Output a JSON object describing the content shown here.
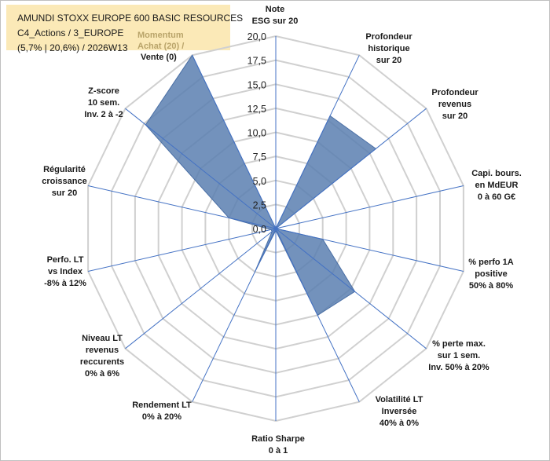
{
  "header": {
    "line1": "AMUNDI STOXX EUROPE 600 BASIC RESOURCES",
    "line2": "C4_Actions / 3_EUROPE",
    "line3": "(5,7% | 20,6%) / 2026W13"
  },
  "momentum": {
    "line1": "Momentum",
    "line2": "Achat (20) /",
    "line3": "Vente (0)"
  },
  "chart_data": {
    "type": "radar",
    "title": "AMUNDI STOXX EUROPE 600 BASIC RESOURCES",
    "rlim": [
      0,
      20
    ],
    "ticks": [
      "0,0",
      "2,5",
      "5,0",
      "7,5",
      "10,0",
      "12,5",
      "15,0",
      "17,5",
      "20,0"
    ],
    "tick_values": [
      0,
      2.5,
      5,
      7.5,
      10,
      12.5,
      15,
      17.5,
      20
    ],
    "grid": true,
    "fill_color": "#5b7fb0",
    "edge_color": "#4a6fa5",
    "axes": [
      {
        "lines": [
          "Note",
          "ESG sur 20"
        ],
        "value": 0
      },
      {
        "lines": [
          "Profondeur",
          "historique",
          "sur 20"
        ],
        "value": 13
      },
      {
        "lines": [
          "Profondeur",
          "revenus",
          "sur 20"
        ],
        "value": 13.3
      },
      {
        "lines": [
          "Capi. bours.",
          "en MdEUR",
          "0 à 60 G€"
        ],
        "value": 0
      },
      {
        "lines": [
          "% perfo 1A",
          "positive",
          "50% à 80%"
        ],
        "value": 5
      },
      {
        "lines": [
          "% perte max.",
          "sur 1 sem.",
          "Inv. 50% à 20%"
        ],
        "value": 10.5
      },
      {
        "lines": [
          "Volatilité LT",
          "Inversée",
          "40% à 0%"
        ],
        "value": 10
      },
      {
        "lines": [
          "Ratio Sharpe",
          "0 à 1"
        ],
        "value": 0.2
      },
      {
        "lines": [
          "Rendement LT",
          "0% à 20%"
        ],
        "value": 5
      },
      {
        "lines": [
          "Niveau LT",
          "revenus",
          "reccurents",
          "0% à 6%"
        ],
        "value": 0.5
      },
      {
        "lines": [
          "Perfo. LT",
          "vs Index",
          "-8% à 12%"
        ],
        "value": 0.5
      },
      {
        "lines": [
          "Régularité",
          "croissance",
          "sur 20"
        ],
        "value": 5
      },
      {
        "lines": [
          "Z-score",
          "10 sem.",
          "Inv. 2 à -2"
        ],
        "value": 17.3
      },
      {
        "lines": [
          "Momentum",
          "Achat (20) /",
          "Vente (0)"
        ],
        "value": 20
      }
    ]
  }
}
